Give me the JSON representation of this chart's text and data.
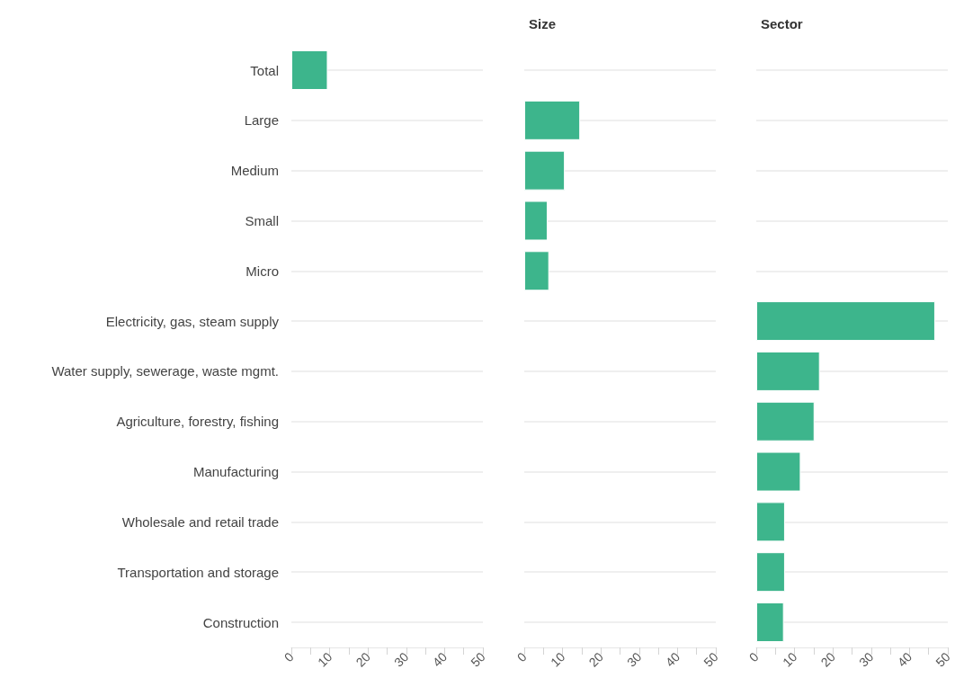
{
  "chart_data": [
    {
      "type": "bar",
      "orientation": "horizontal",
      "categories": [
        "Total",
        "Large",
        "Medium",
        "Small",
        "Micro",
        "Electricity, gas, steam supply",
        "Water supply, sewerage, waste mgmt.",
        "Agriculture, forestry, fishing",
        "Manufacturing",
        "Wholesale and retail trade",
        "Transportation and storage",
        "Construction"
      ],
      "values": [
        9.5,
        null,
        null,
        null,
        null,
        null,
        null,
        null,
        null,
        null,
        null,
        null
      ],
      "color": "#3db58c",
      "xlim": [
        0,
        50
      ],
      "xticks": [
        0,
        {
          "value": 5,
          "label": null
        },
        10,
        {
          "value": 15,
          "label": null
        },
        20,
        {
          "value": 25,
          "label": null
        },
        30,
        {
          "value": 35,
          "label": null
        },
        40,
        {
          "value": 45,
          "label": null
        },
        50
      ],
      "grid": "y"
    },
    {
      "type": "bar",
      "orientation": "horizontal",
      "title": "Size",
      "categories": [
        null,
        null,
        null,
        null,
        null,
        null,
        null,
        null,
        null,
        null,
        null,
        null
      ],
      "values": [
        null,
        14.6,
        10.6,
        6.1,
        6.5,
        null,
        null,
        null,
        null,
        null,
        null,
        null
      ],
      "color": "#3db58c",
      "xlim": [
        0,
        50
      ],
      "xticks": [
        0,
        {
          "value": 5,
          "label": null
        },
        10,
        {
          "value": 15,
          "label": null
        },
        20,
        {
          "value": 25,
          "label": null
        },
        30,
        {
          "value": 35,
          "label": null
        },
        40,
        {
          "value": 45,
          "label": null
        },
        50
      ],
      "grid": "y",
      "tick_labels": "x"
    },
    {
      "type": "bar",
      "orientation": "horizontal",
      "title": "Sector",
      "categories": [
        null,
        null,
        null,
        null,
        null,
        null,
        null,
        null,
        null,
        null,
        null,
        null
      ],
      "values": [
        null,
        null,
        null,
        null,
        null,
        46.7,
        16.6,
        15.2,
        11.6,
        7.5,
        7.5,
        7.2
      ],
      "color": "#3db58c",
      "xlim": [
        0,
        50
      ],
      "xticks": [
        0,
        {
          "value": 5,
          "label": null
        },
        10,
        {
          "value": 15,
          "label": null
        },
        20,
        {
          "value": 25,
          "label": null
        },
        30,
        {
          "value": 35,
          "label": null
        },
        40,
        {
          "value": 45,
          "label": null
        },
        50
      ],
      "grid": "y",
      "tick_labels": "x"
    }
  ]
}
